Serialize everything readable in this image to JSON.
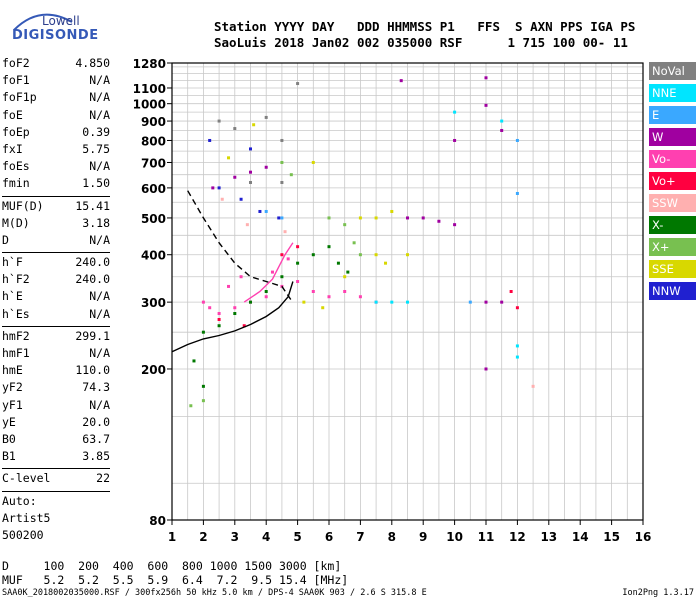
{
  "logo": {
    "line1": "Lowell",
    "line2": "DIGISONDE"
  },
  "header": {
    "line1": "Station YYYY DAY   DDD HHMMSS P1   FFS  S AXN PPS IGA PS",
    "line2": "SaoLuis 2018 Jan02 002 035000 RSF      1 715 100 00- 11"
  },
  "params": {
    "group1": [
      {
        "k": "foF2",
        "v": "4.850"
      },
      {
        "k": "foF1",
        "v": "N/A"
      },
      {
        "k": "foF1p",
        "v": "N/A"
      },
      {
        "k": "foE",
        "v": "N/A"
      },
      {
        "k": "foEp",
        "v": "0.39"
      },
      {
        "k": "fxI",
        "v": "5.75"
      },
      {
        "k": "foEs",
        "v": "N/A"
      },
      {
        "k": "fmin",
        "v": "1.50"
      }
    ],
    "group2": [
      {
        "k": "MUF(D)",
        "v": "15.41"
      },
      {
        "k": "M(D)",
        "v": "3.18"
      },
      {
        "k": "D",
        "v": "N/A"
      }
    ],
    "group3": [
      {
        "k": "h`F",
        "v": "240.0"
      },
      {
        "k": "h`F2",
        "v": "240.0"
      },
      {
        "k": "h`E",
        "v": "N/A"
      },
      {
        "k": "h`Es",
        "v": "N/A"
      }
    ],
    "group4": [
      {
        "k": "hmF2",
        "v": "299.1"
      },
      {
        "k": "hmF1",
        "v": "N/A"
      },
      {
        "k": "hmE",
        "v": "110.0"
      },
      {
        "k": "yF2",
        "v": "74.3"
      },
      {
        "k": "yF1",
        "v": "N/A"
      },
      {
        "k": "yE",
        "v": "20.0"
      },
      {
        "k": "B0",
        "v": "63.7"
      },
      {
        "k": "B1",
        "v": "3.85"
      }
    ],
    "group5": [
      {
        "k": "C-level",
        "v": "22"
      }
    ],
    "auto": [
      "Auto:",
      "Artist5",
      "500200"
    ]
  },
  "legend": [
    {
      "label": "NoVal",
      "color": "#808080"
    },
    {
      "label": "NNE",
      "color": "#00e5ff"
    },
    {
      "label": "E",
      "color": "#3aa8ff"
    },
    {
      "label": "W",
      "color": "#a000a0"
    },
    {
      "label": "Vo-",
      "color": "#ff40b0"
    },
    {
      "label": "Vo+",
      "color": "#ff0040"
    },
    {
      "label": "SSW",
      "color": "#ffb0b0"
    },
    {
      "label": "X-",
      "color": "#007800"
    },
    {
      "label": "X+",
      "color": "#78c050"
    },
    {
      "label": "SSE",
      "color": "#d8d800"
    },
    {
      "label": "NNW",
      "color": "#2020d0"
    }
  ],
  "bottom": {
    "d_row": "D     100  200  400  600  800 1000 1500 3000 [km]",
    "muf_row": "MUF   5.2  5.2  5.5  5.9  6.4  7.2  9.5 15.4 [MHz]"
  },
  "footer": {
    "left": "SAA0K_2018002035000.RSF / 300fx256h 50 kHz 5.0 km / DPS-4 SAA0K 903 / 2.6 S 315.8 E",
    "right": "Ion2Png 1.3.17"
  },
  "chart_data": {
    "type": "scatter",
    "title": "",
    "xlabel": "",
    "ylabel": "",
    "xlim": [
      1,
      16
    ],
    "ylim": [
      80,
      1280
    ],
    "x_ticks": [
      1,
      2,
      3,
      4,
      5,
      6,
      7,
      8,
      9,
      10,
      11,
      12,
      13,
      14,
      15,
      16
    ],
    "y_ticks": [
      80,
      200,
      300,
      400,
      500,
      600,
      700,
      800,
      900,
      1000,
      1100,
      1280
    ],
    "y_scale": "log",
    "grid": true,
    "series": [
      {
        "color": "#ff40b0",
        "points": [
          [
            2.0,
            300
          ],
          [
            2.2,
            290
          ],
          [
            2.5,
            280
          ],
          [
            3.0,
            290
          ],
          [
            3.5,
            300
          ],
          [
            4.0,
            310
          ],
          [
            4.5,
            330
          ],
          [
            5.0,
            340
          ],
          [
            5.5,
            320
          ],
          [
            6.0,
            310
          ],
          [
            6.5,
            320
          ],
          [
            7.0,
            310
          ],
          [
            7.5,
            300
          ],
          [
            2.8,
            330
          ],
          [
            3.2,
            350
          ],
          [
            4.2,
            360
          ],
          [
            4.7,
            390
          ]
        ]
      },
      {
        "color": "#a000a0",
        "points": [
          [
            2.3,
            600
          ],
          [
            3.0,
            640
          ],
          [
            3.5,
            660
          ],
          [
            4.0,
            680
          ],
          [
            8.5,
            500
          ],
          [
            9.0,
            500
          ],
          [
            9.5,
            490
          ],
          [
            10.0,
            480
          ],
          [
            8.3,
            1150
          ],
          [
            11.0,
            1170
          ],
          [
            11.0,
            990
          ],
          [
            11.5,
            850
          ],
          [
            10.0,
            800
          ],
          [
            11.0,
            300
          ],
          [
            11.0,
            200
          ],
          [
            11.5,
            300
          ]
        ]
      },
      {
        "color": "#007800",
        "points": [
          [
            2.0,
            250
          ],
          [
            2.5,
            260
          ],
          [
            3.0,
            280
          ],
          [
            3.5,
            300
          ],
          [
            4.0,
            320
          ],
          [
            4.5,
            350
          ],
          [
            5.0,
            380
          ],
          [
            5.5,
            400
          ],
          [
            6.0,
            420
          ],
          [
            6.3,
            380
          ],
          [
            6.6,
            360
          ],
          [
            1.7,
            210
          ],
          [
            2.0,
            180
          ]
        ]
      },
      {
        "color": "#78c050",
        "points": [
          [
            1.6,
            160
          ],
          [
            2.0,
            165
          ],
          [
            6.0,
            500
          ],
          [
            6.5,
            480
          ],
          [
            6.8,
            430
          ],
          [
            7.0,
            400
          ],
          [
            4.5,
            700
          ],
          [
            4.8,
            650
          ]
        ]
      },
      {
        "color": "#d8d800",
        "points": [
          [
            5.2,
            300
          ],
          [
            5.8,
            290
          ],
          [
            6.5,
            350
          ],
          [
            7.0,
            500
          ],
          [
            7.5,
            500
          ],
          [
            8.0,
            520
          ],
          [
            7.5,
            400
          ],
          [
            7.8,
            380
          ],
          [
            8.5,
            400
          ],
          [
            5.5,
            700
          ],
          [
            3.6,
            880
          ],
          [
            2.8,
            720
          ]
        ]
      },
      {
        "color": "#00e5ff",
        "points": [
          [
            7.5,
            300
          ],
          [
            8.0,
            300
          ],
          [
            8.5,
            300
          ],
          [
            12.0,
            215
          ],
          [
            12.0,
            230
          ],
          [
            11.5,
            900
          ],
          [
            10.0,
            950
          ]
        ]
      },
      {
        "color": "#3aa8ff",
        "points": [
          [
            4.5,
            500
          ],
          [
            4.0,
            520
          ],
          [
            12.0,
            580
          ],
          [
            12.0,
            800
          ],
          [
            10.5,
            300
          ]
        ]
      },
      {
        "color": "#ff0040",
        "points": [
          [
            4.5,
            400
          ],
          [
            5.0,
            420
          ],
          [
            3.3,
            260
          ],
          [
            2.5,
            270
          ],
          [
            12.0,
            290
          ],
          [
            11.8,
            320
          ]
        ]
      },
      {
        "color": "#2020d0",
        "points": [
          [
            2.5,
            600
          ],
          [
            3.2,
            560
          ],
          [
            3.8,
            520
          ],
          [
            4.4,
            500
          ],
          [
            2.2,
            800
          ],
          [
            3.5,
            760
          ]
        ]
      },
      {
        "color": "#ffb0b0",
        "points": [
          [
            2.6,
            560
          ],
          [
            3.4,
            480
          ],
          [
            4.6,
            460
          ],
          [
            12.5,
            180
          ]
        ]
      },
      {
        "color": "#808080",
        "points": [
          [
            2.5,
            900
          ],
          [
            3.0,
            860
          ],
          [
            4.0,
            920
          ],
          [
            4.5,
            800
          ],
          [
            5.0,
            1130
          ],
          [
            3.5,
            620
          ],
          [
            4.5,
            620
          ]
        ]
      }
    ],
    "curves": [
      {
        "name": "",
        "color": "#000",
        "style": "solid",
        "points": [
          [
            1.0,
            222
          ],
          [
            1.5,
            232
          ],
          [
            2.0,
            240
          ],
          [
            2.5,
            245
          ],
          [
            3.0,
            252
          ],
          [
            3.5,
            262
          ],
          [
            4.0,
            275
          ],
          [
            4.4,
            290
          ],
          [
            4.7,
            310
          ],
          [
            4.85,
            340
          ]
        ]
      },
      {
        "name": "",
        "color": "#000",
        "style": "dashed",
        "points": [
          [
            1.5,
            590
          ],
          [
            2.0,
            500
          ],
          [
            2.5,
            430
          ],
          [
            3.0,
            380
          ],
          [
            3.5,
            350
          ],
          [
            4.0,
            340
          ],
          [
            4.5,
            330
          ],
          [
            4.85,
            299
          ]
        ]
      },
      {
        "name": "",
        "color": "#ff40b0",
        "style": "solid",
        "points": [
          [
            3.3,
            300
          ],
          [
            3.8,
            320
          ],
          [
            4.2,
            345
          ],
          [
            4.6,
            400
          ],
          [
            4.85,
            430
          ]
        ]
      }
    ]
  }
}
